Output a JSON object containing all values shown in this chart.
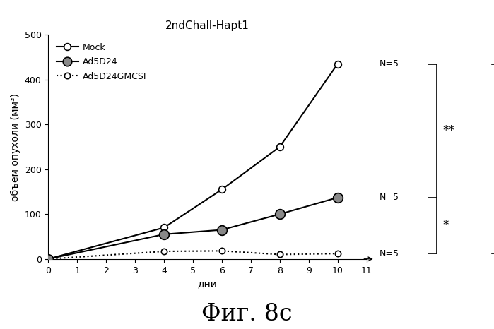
{
  "title": "2ndChall-Hapt1",
  "xlabel": "дни",
  "ylabel": "объем опухоли (мм³)",
  "figcaption": "Фиг. 8c",
  "xlim": [
    0,
    11
  ],
  "ylim": [
    0,
    500
  ],
  "yticks": [
    0,
    100,
    200,
    300,
    400,
    500
  ],
  "xticks": [
    0,
    1,
    2,
    3,
    4,
    5,
    6,
    7,
    8,
    9,
    10,
    11
  ],
  "series": [
    {
      "label": "Mock",
      "x": [
        0,
        4,
        6,
        8,
        10
      ],
      "y": [
        0,
        70,
        155,
        250,
        435
      ],
      "color": "#000000",
      "linestyle": "solid",
      "marker": "o",
      "marker_fill": "white",
      "linewidth": 1.5,
      "markersize": 7
    },
    {
      "label": "Ad5D24",
      "x": [
        0,
        4,
        6,
        8,
        10
      ],
      "y": [
        0,
        55,
        65,
        100,
        137
      ],
      "color": "#000000",
      "linestyle": "solid",
      "marker": "o",
      "marker_fill": "hatch",
      "linewidth": 1.5,
      "markersize": 9
    },
    {
      "label": "Ad5D24GMCSF",
      "x": [
        0,
        4,
        6,
        8,
        10
      ],
      "y": [
        0,
        17,
        18,
        10,
        12
      ],
      "color": "#000000",
      "linestyle": "dotted",
      "marker": "o",
      "marker_fill": "white",
      "linewidth": 1.5,
      "markersize": 6
    }
  ],
  "y_mock": 435,
  "y_ad5d24": 137,
  "y_ad5d24gm": 12,
  "background_color": "#ffffff",
  "title_fontsize": 11,
  "axis_fontsize": 10,
  "tick_fontsize": 9,
  "caption_fontsize": 24,
  "legend_fontsize": 9,
  "bracket_fontsize": 12
}
